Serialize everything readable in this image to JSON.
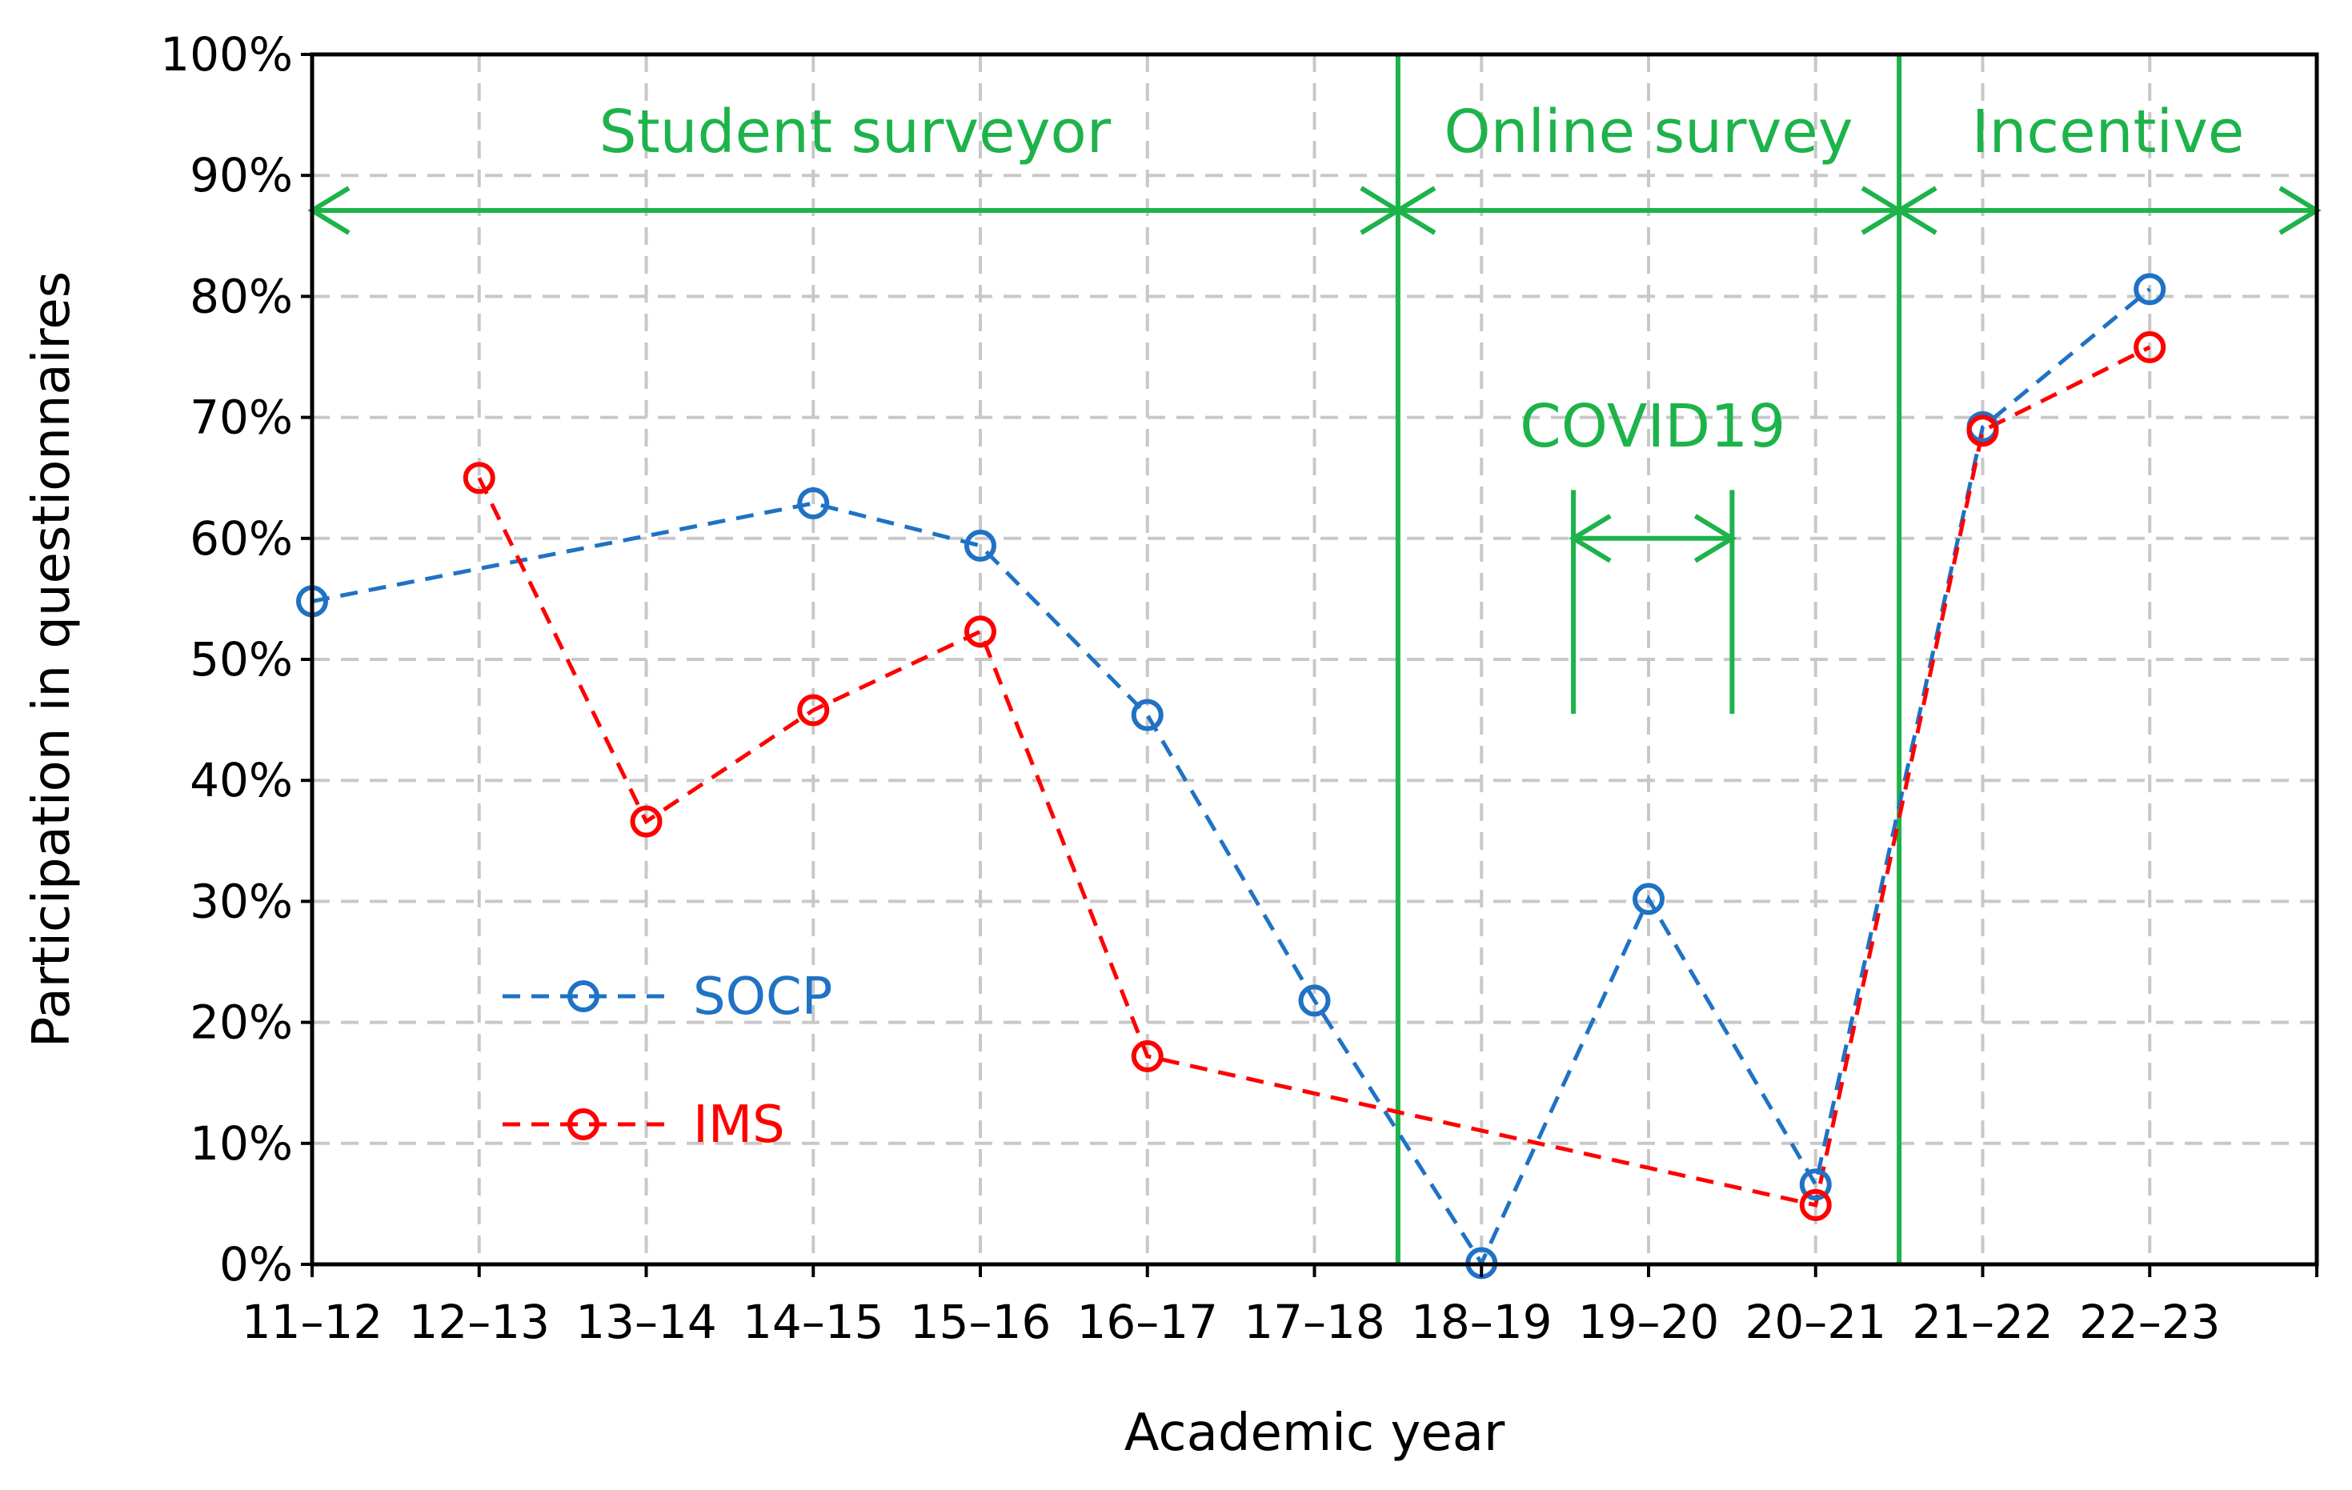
{
  "colors": {
    "socp": "#1f72c4",
    "ims": "#ff0000",
    "annotation": "#1db34a",
    "grid": "#c8c8c8",
    "axis": "#000000"
  },
  "chart_data": {
    "type": "line",
    "title": "",
    "xlabel": "Academic year",
    "ylabel": "Participation in questionnaires",
    "categories": [
      "11–12",
      "12–13",
      "13–14",
      "14–15",
      "15–16",
      "16–17",
      "17–18",
      "18–19",
      "19–20",
      "20–21",
      "21–22",
      "22–23"
    ],
    "ylim": [
      0,
      100
    ],
    "yticks": [
      "0%",
      "10%",
      "20%",
      "30%",
      "40%",
      "50%",
      "60%",
      "70%",
      "80%",
      "90%",
      "100%"
    ],
    "grid": true,
    "legend_position": "middle-left",
    "series": [
      {
        "name": "SOCP",
        "color": "#1f72c4",
        "style": "dashed",
        "marker": "circle",
        "values": [
          54.8,
          null,
          null,
          62.9,
          59.4,
          45.4,
          21.8,
          0.1,
          30.2,
          6.6,
          69.2,
          80.6
        ]
      },
      {
        "name": "IMS",
        "color": "#ff0000",
        "style": "dashed",
        "marker": "circle",
        "values": [
          null,
          65.0,
          36.6,
          45.8,
          52.3,
          17.2,
          null,
          null,
          null,
          4.9,
          68.9,
          75.8
        ]
      }
    ],
    "phases": [
      {
        "label": "Student surveyor",
        "start": -0.0,
        "end": 6.5
      },
      {
        "label": "Online survey",
        "start": 6.5,
        "end": 9.5
      },
      {
        "label": "Incentive",
        "start": 9.5,
        "end": 12.0
      }
    ],
    "phase_boundaries": [
      6.5,
      9.5
    ],
    "annotation": {
      "label": "COVID19",
      "start": 7.55,
      "end": 8.5
    }
  }
}
